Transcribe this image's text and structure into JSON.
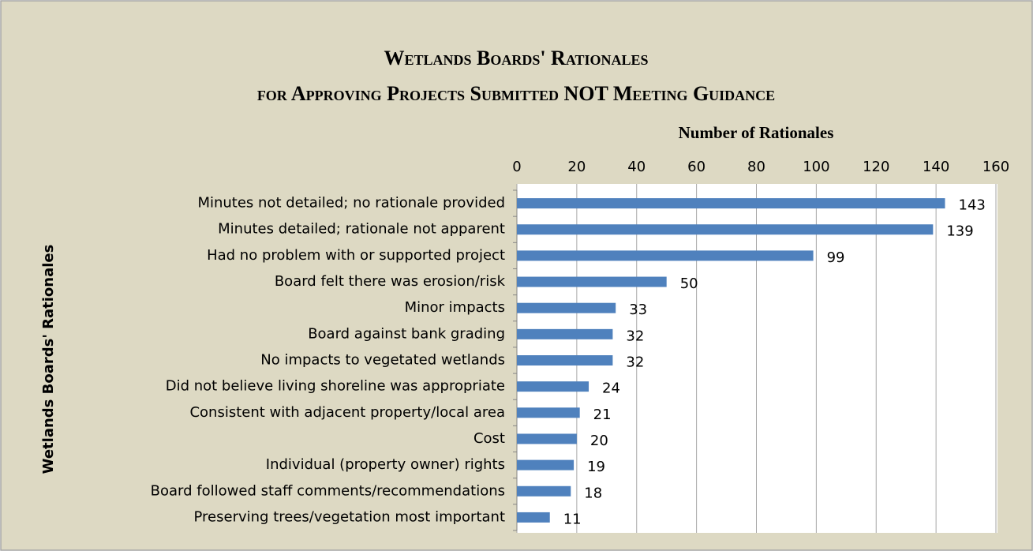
{
  "chart_data": {
    "type": "bar",
    "orientation": "horizontal",
    "title": [
      "Wetlands Boards' Rationales",
      "for Approving Projects Submitted NOT Meeting Guidance"
    ],
    "x_label": "Number of Rationales",
    "y_label": "Wetlands Boards' Rationales",
    "categories": [
      "Minutes not detailed; no rationale provided",
      "Minutes detailed; rationale not apparent",
      "Had no problem with or supported project",
      "Board felt there was erosion/risk",
      "Minor impacts",
      "Board against bank grading",
      "No impacts to vegetated wetlands",
      "Did not believe living shoreline was appropriate",
      "Consistent with adjacent property/local area",
      "Cost",
      "Individual (property owner) rights",
      "Board followed staff comments/recommendations",
      "Preserving trees/vegetation most important"
    ],
    "values": [
      143,
      139,
      99,
      50,
      33,
      32,
      32,
      24,
      21,
      20,
      19,
      18,
      11
    ],
    "color": "#4f81bd",
    "xlim": [
      0,
      160
    ],
    "xticks": [
      0,
      20,
      40,
      60,
      80,
      100,
      120,
      140,
      160
    ],
    "grid": true
  }
}
